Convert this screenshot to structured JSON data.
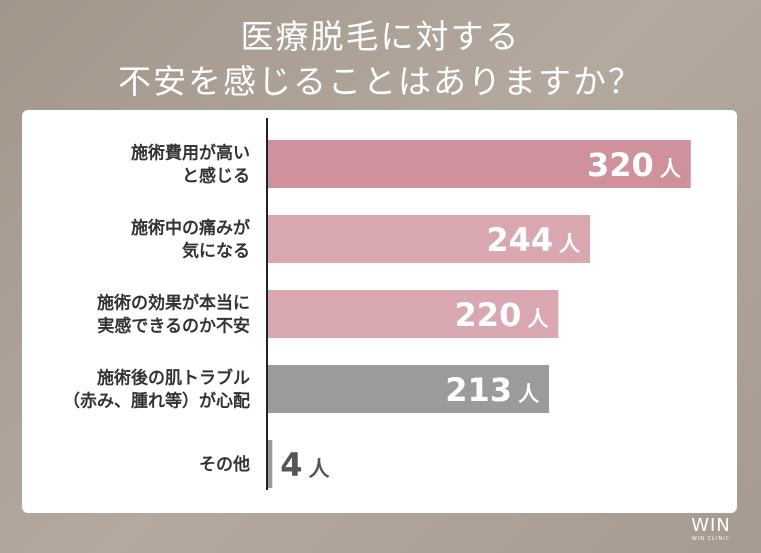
{
  "title": {
    "line1": "医療脱毛に対する",
    "line2": "不安を感じることはありますか？"
  },
  "chart_data": {
    "type": "bar",
    "orientation": "horizontal",
    "categories": [
      [
        "施術費用が高い",
        "と感じる"
      ],
      [
        "施術中の痛みが",
        "気になる"
      ],
      [
        "施術の効果が本当に",
        "実感できるのか不安"
      ],
      [
        "施術後の肌トラブル",
        "（赤み、腫れ等）が心配"
      ],
      [
        "その他"
      ]
    ],
    "values": [
      320,
      244,
      220,
      213,
      4
    ],
    "unit": "人",
    "xlim": [
      0,
      330
    ],
    "grid": false,
    "legend": "none",
    "bar_colors": [
      "#cf929d",
      "#d8a7b0",
      "#d8a7b0",
      "#9b9b9b",
      "#9b9b9b"
    ],
    "value_label_colors": [
      "#ffffff",
      "#ffffff",
      "#ffffff",
      "#ffffff",
      "#555555"
    ]
  },
  "logo": {
    "main": "WIN",
    "sub": "WIN CLINIC"
  }
}
